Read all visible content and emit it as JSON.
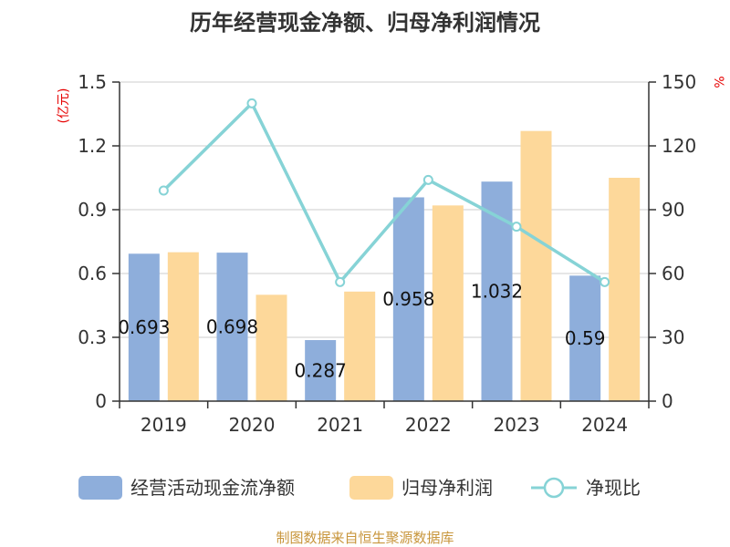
{
  "chart_data": {
    "type": "bar",
    "title": "历年经营现金净额、归母净利润情况",
    "categories": [
      "2019",
      "2020",
      "2021",
      "2022",
      "2023",
      "2024"
    ],
    "left_axis": {
      "unit": "(亿元)",
      "ylim": [
        0,
        1.5
      ],
      "ticks": [
        "0",
        "0.3",
        "0.6",
        "0.9",
        "1.2",
        "1.5"
      ]
    },
    "right_axis": {
      "unit": "%",
      "ylim": [
        0,
        150
      ],
      "ticks": [
        "0",
        "30",
        "60",
        "90",
        "120",
        "150"
      ]
    },
    "series": [
      {
        "name": "经营活动现金流净额",
        "type": "bar",
        "axis": "left",
        "color": "#8eaedb",
        "values": [
          0.693,
          0.698,
          0.287,
          0.958,
          1.032,
          0.59
        ],
        "labels": [
          "0.693",
          "0.698",
          "0.287",
          "0.958",
          "1.032",
          "0.59"
        ]
      },
      {
        "name": "归母净利润",
        "type": "bar",
        "axis": "left",
        "color": "#fdd89a",
        "values": [
          0.7,
          0.5,
          0.515,
          0.92,
          1.27,
          1.05
        ]
      },
      {
        "name": "净现比",
        "type": "line",
        "axis": "right",
        "color": "#86d3d6",
        "values": [
          99,
          140,
          56,
          104,
          82,
          56
        ]
      }
    ],
    "grid": true,
    "legend_position": "bottom"
  },
  "source_text": "制图数据来自恒生聚源数据库"
}
